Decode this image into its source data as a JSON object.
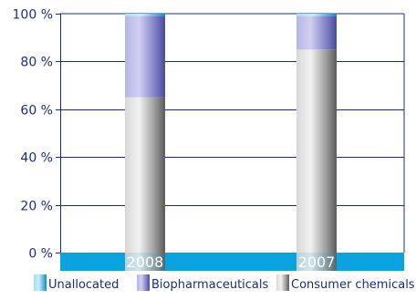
{
  "chart_data": {
    "type": "bar",
    "stacked": true,
    "categories": [
      "2008",
      "2007"
    ],
    "series": [
      {
        "name": "Consumer chemicals",
        "values": [
          65,
          85
        ],
        "color": "#a9a9a9"
      },
      {
        "name": "Biopharmaceuticals",
        "values": [
          34,
          14
        ],
        "color": "#8e8fcc"
      },
      {
        "name": "Unallocated",
        "values": [
          1,
          1
        ],
        "color": "#29b3e6"
      }
    ],
    "ylim": [
      0,
      100
    ],
    "yticks": [
      0,
      20,
      40,
      60,
      80,
      100
    ],
    "ytick_labels": [
      "0 %",
      "20 %",
      "40 %",
      "60 %",
      "80 %",
      "100 %"
    ],
    "legend_order": [
      "Unallocated",
      "Biopharmaceuticals",
      "Consumer chemicals"
    ],
    "legend_position": "bottom",
    "grid": true,
    "colors": {
      "axis": "#1a2d7c",
      "grid": "#1a2d7c",
      "baseline_band": "#0aa3e0"
    }
  }
}
